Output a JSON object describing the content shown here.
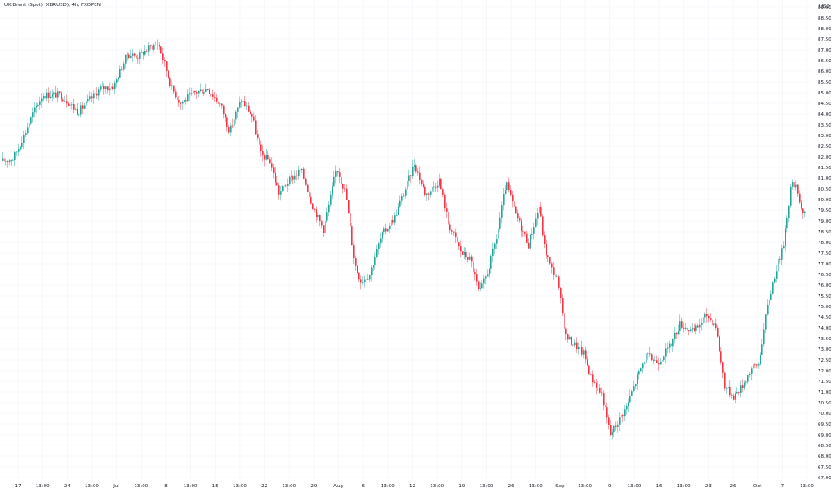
{
  "legend": "UK Brent (Spot) (XBRUSD), 4h, FXOPEN",
  "currency": "USD",
  "chart_data": {
    "type": "candlestick",
    "ylim": [
      67.0,
      89.0
    ],
    "y_ticks": [
      "67.00",
      "67.50",
      "68.00",
      "68.50",
      "69.00",
      "69.50",
      "70.00",
      "70.50",
      "71.00",
      "71.50",
      "72.00",
      "72.50",
      "73.00",
      "73.50",
      "74.00",
      "74.50",
      "75.00",
      "75.50",
      "76.00",
      "76.50",
      "77.00",
      "77.50",
      "78.00",
      "78.50",
      "79.00",
      "79.50",
      "80.00",
      "80.50",
      "81.00",
      "81.50",
      "82.00",
      "82.50",
      "83.00",
      "83.50",
      "84.00",
      "84.50",
      "85.00",
      "85.50",
      "86.00",
      "86.50",
      "87.00",
      "87.50",
      "88.00",
      "88.50",
      "89.00"
    ],
    "x_ticks": [
      "17",
      "13:00",
      "24",
      "13:00",
      "Jul",
      "13:00",
      "8",
      "13:00",
      "15",
      "13:00",
      "22",
      "13:00",
      "29",
      "Aug",
      "6",
      "13:00",
      "12",
      "13:00",
      "19",
      "13:00",
      "26",
      "13:00",
      "Sep",
      "13:00",
      "9",
      "13:00",
      "16",
      "13:00",
      "23",
      "26",
      "Oct",
      "7",
      "13:00"
    ],
    "anchors": [
      [
        0,
        81.8
      ],
      [
        12,
        81.9
      ],
      [
        20,
        82.6
      ],
      [
        35,
        84.1
      ],
      [
        45,
        84.9
      ],
      [
        65,
        84.9
      ],
      [
        85,
        84.1
      ],
      [
        110,
        85.2
      ],
      [
        125,
        85.3
      ],
      [
        140,
        86.8
      ],
      [
        152,
        86.7
      ],
      [
        165,
        87.1
      ],
      [
        175,
        87.3
      ],
      [
        190,
        85.2
      ],
      [
        200,
        84.5
      ],
      [
        215,
        85.0
      ],
      [
        230,
        85.2
      ],
      [
        245,
        84.4
      ],
      [
        255,
        83.2
      ],
      [
        268,
        84.7
      ],
      [
        280,
        83.9
      ],
      [
        290,
        82.1
      ],
      [
        300,
        81.8
      ],
      [
        310,
        80.3
      ],
      [
        322,
        80.9
      ],
      [
        335,
        81.4
      ],
      [
        348,
        79.7
      ],
      [
        360,
        78.6
      ],
      [
        368,
        80.1
      ],
      [
        375,
        81.5
      ],
      [
        385,
        80.3
      ],
      [
        395,
        77.0
      ],
      [
        402,
        76.2
      ],
      [
        412,
        76.5
      ],
      [
        425,
        78.3
      ],
      [
        440,
        79.2
      ],
      [
        452,
        80.5
      ],
      [
        462,
        81.7
      ],
      [
        475,
        80.2
      ],
      [
        490,
        80.9
      ],
      [
        500,
        78.9
      ],
      [
        515,
        77.5
      ],
      [
        525,
        77.2
      ],
      [
        535,
        75.6
      ],
      [
        545,
        76.7
      ],
      [
        555,
        78.4
      ],
      [
        565,
        80.8
      ],
      [
        575,
        79.4
      ],
      [
        590,
        77.9
      ],
      [
        602,
        79.7
      ],
      [
        608,
        77.8
      ],
      [
        615,
        76.8
      ],
      [
        622,
        76.3
      ],
      [
        632,
        73.6
      ],
      [
        642,
        73.2
      ],
      [
        652,
        72.8
      ],
      [
        660,
        71.7
      ],
      [
        672,
        70.9
      ],
      [
        682,
        69.0
      ],
      [
        690,
        69.6
      ],
      [
        700,
        70.3
      ],
      [
        712,
        71.7
      ],
      [
        722,
        72.7
      ],
      [
        735,
        72.4
      ],
      [
        748,
        73.1
      ],
      [
        760,
        74.2
      ],
      [
        775,
        73.8
      ],
      [
        790,
        74.6
      ],
      [
        800,
        74.1
      ],
      [
        810,
        71.3
      ],
      [
        820,
        70.8
      ],
      [
        830,
        71.3
      ],
      [
        840,
        72.1
      ],
      [
        848,
        72.3
      ],
      [
        858,
        75.0
      ],
      [
        868,
        76.8
      ],
      [
        875,
        77.7
      ],
      [
        885,
        80.8
      ],
      [
        892,
        80.4
      ],
      [
        897,
        79.4
      ]
    ],
    "x_range": [
      0,
      900
    ]
  },
  "colors": {
    "up": "#26a69a",
    "down": "#f23645",
    "grid": "#f0f3fa",
    "axis": "#131722"
  }
}
